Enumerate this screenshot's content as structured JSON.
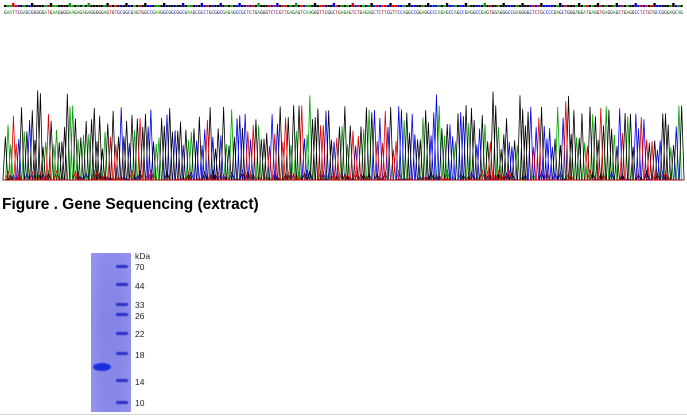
{
  "figure": {
    "caption": "Figure . Gene Sequencing (extract)"
  },
  "chromatogram": {
    "base_colors": {
      "A": "#00a000",
      "C": "#0000e0",
      "G": "#000000",
      "T": "#e00000"
    },
    "sequence": "GAATTCGAGCGGGGGATGAAGGGGAAGAGAGAGGGGGAGTGTGCGGCGAGTGGCCGAAGGCGGCGGCGAAGCGCCTGCGGCGAGAGCCGCTCTGAGGGTCTCGTTGAGAGTCAAGGGTTCGGCTGAGAGTCTGAGAGCTCTTCGTTCCAGGCCGGAGGCCCAGAGCCAGCCGAGGCCGAGTGGAGGGCCGAGGGGCTCTGCCCCGAGCTGGGAGGATGAGGTGAGGAGCTGAGGCCTCTGTGCCGGGAGCAG"
  },
  "gel": {
    "unit": "kDa",
    "markers": [
      "70",
      "44",
      "33",
      "26",
      "22",
      "18",
      "14",
      "10"
    ],
    "lane_color": "#8d8cec",
    "band_color": "#2a2fc7"
  }
}
